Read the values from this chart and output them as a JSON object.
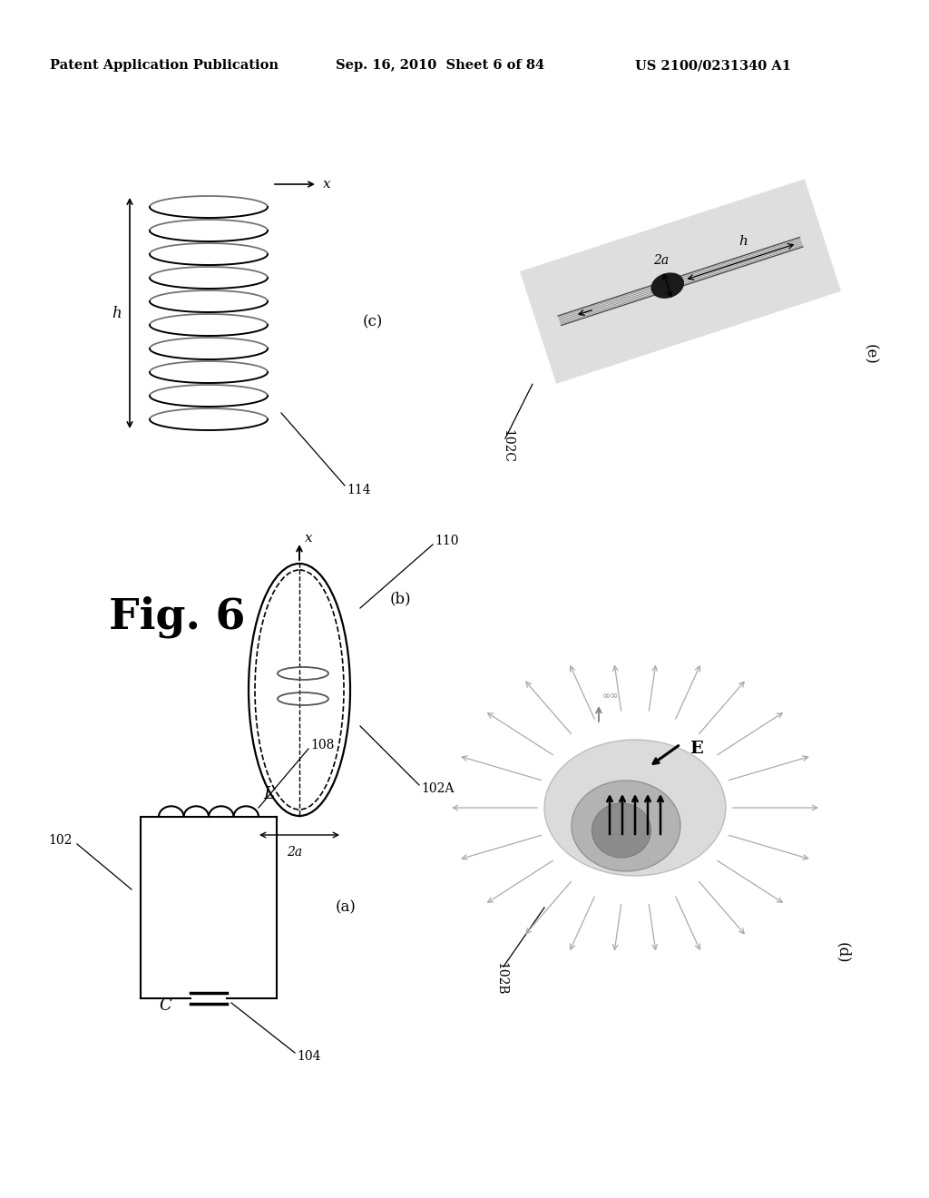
{
  "bg_color": "#ffffff",
  "header_left": "Patent Application Publication",
  "header_mid": "Sep. 16, 2010  Sheet 6 of 84",
  "header_right": "US 2100/0231340 A1",
  "fig_label": "Fig. 6",
  "panel_a_label": "(a)",
  "panel_b_label": "(b)",
  "panel_c_label": "(c)",
  "panel_d_label": "(d)",
  "panel_e_label": "(e)",
  "ref_102": "102",
  "ref_104": "104",
  "ref_108": "108",
  "ref_110": "110",
  "ref_114": "114",
  "ref_102A": "102A",
  "ref_102B": "102B",
  "ref_102C": "102C",
  "label_C": "C",
  "label_L": "L",
  "label_h": "h",
  "label_x": "x",
  "label_2a": "2a",
  "label_E": "E"
}
